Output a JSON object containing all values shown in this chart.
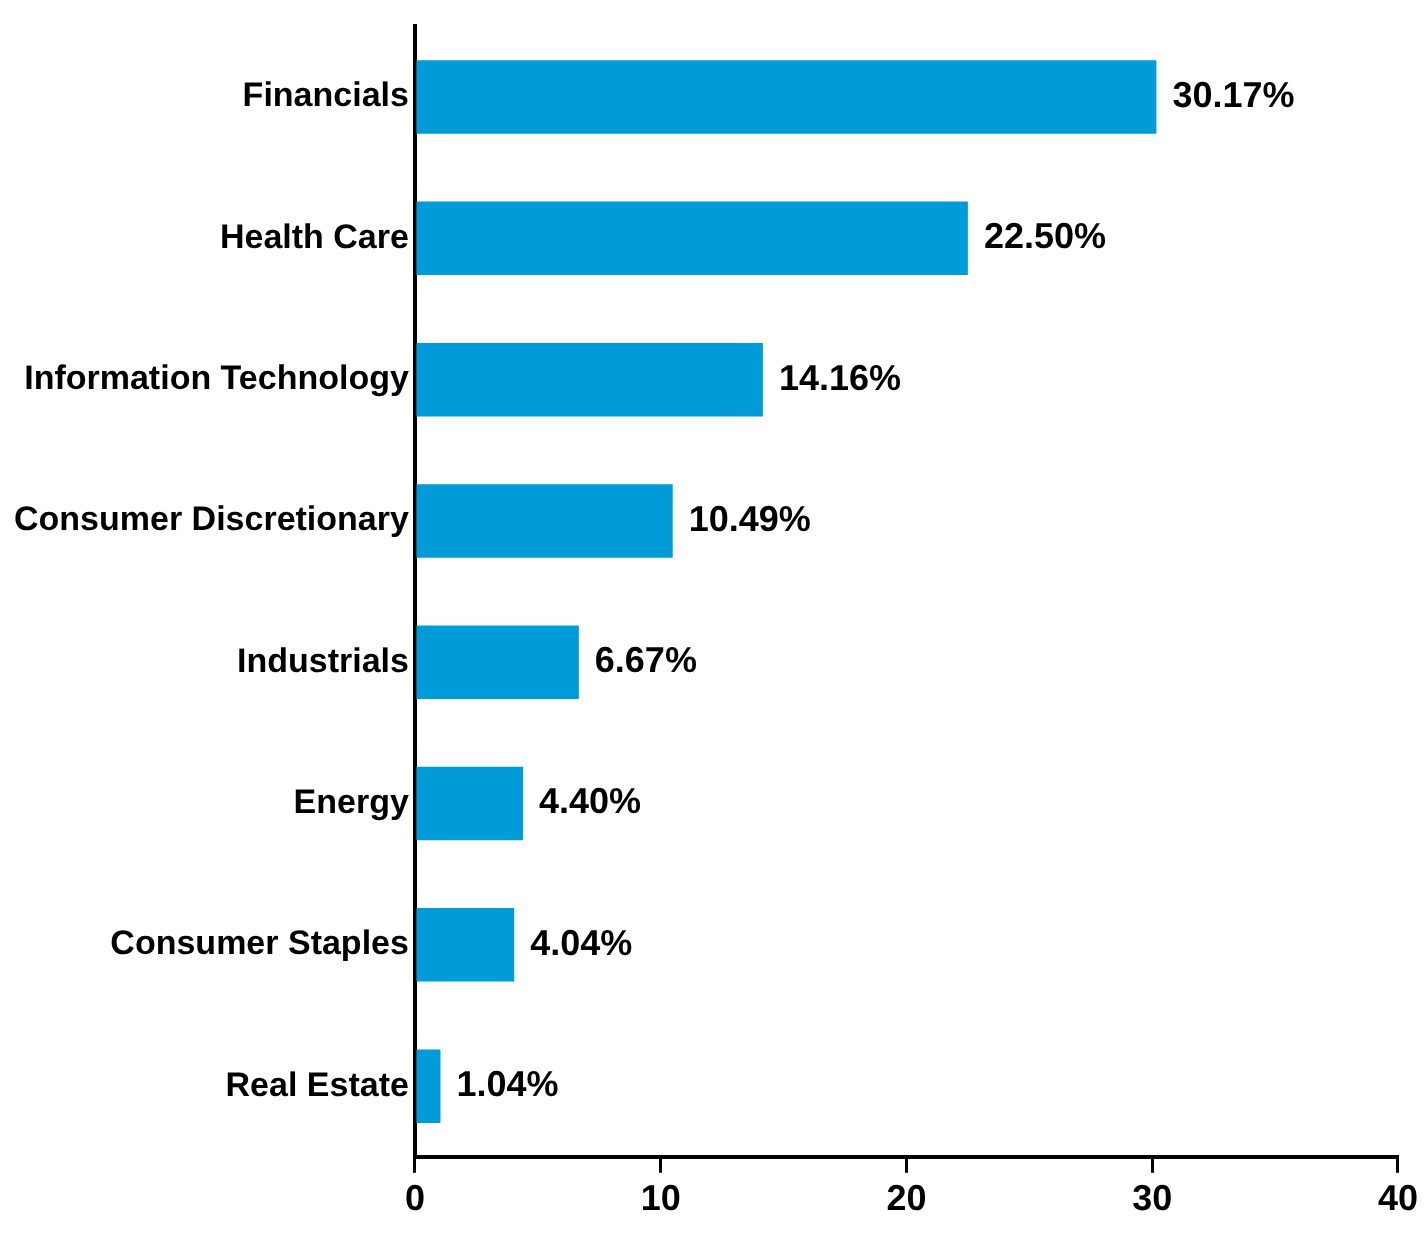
{
  "chart_data": {
    "type": "bar",
    "orientation": "horizontal",
    "categories": [
      "Financials",
      "Health Care",
      "Information Technology",
      "Consumer Discretionary",
      "Industrials",
      "Energy",
      "Consumer Staples",
      "Real Estate"
    ],
    "values": [
      30.17,
      22.5,
      14.16,
      10.49,
      6.67,
      4.4,
      4.04,
      1.04
    ],
    "value_labels": [
      "30.17%",
      "22.50%",
      "14.16%",
      "10.49%",
      "6.67%",
      "4.40%",
      "4.04%",
      "1.04%"
    ],
    "color": "#009cd9",
    "xlim": [
      0,
      40
    ],
    "xticks": [
      0,
      10,
      20,
      30,
      40
    ],
    "grid": false,
    "legend": false
  }
}
